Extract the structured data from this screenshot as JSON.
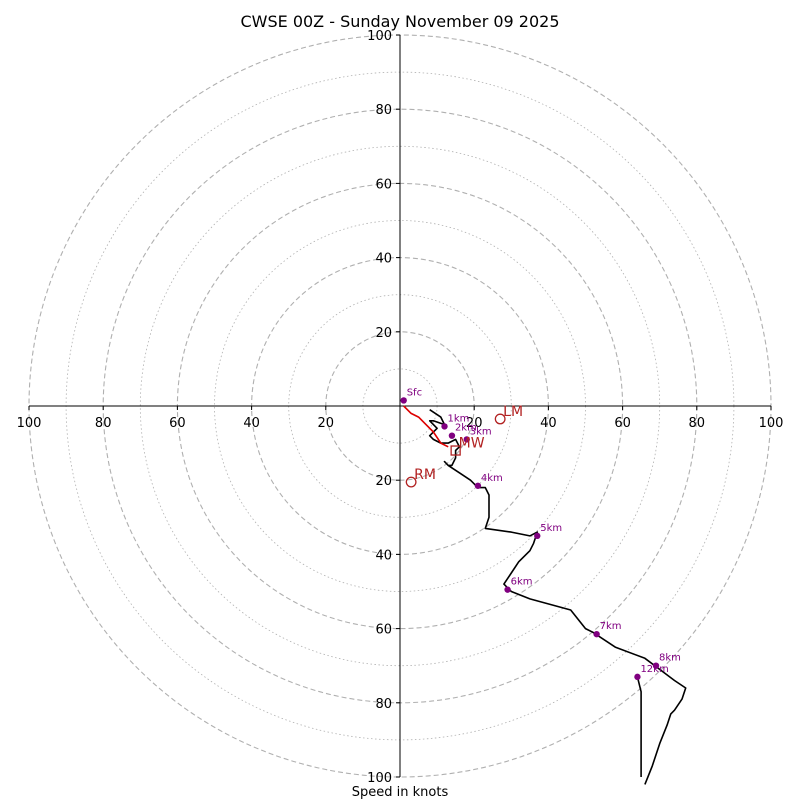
{
  "chart_data": {
    "type": "hodograph",
    "title": "CWSE 00Z - Sunday November 09 2025",
    "xlabel": "Speed in knots",
    "range": [
      -100,
      100
    ],
    "ring_major_step": 20,
    "ring_minor_step": 10,
    "x_ticks": [
      "100",
      "80",
      "60",
      "40",
      "20",
      "20",
      "40",
      "60",
      "80",
      "100"
    ],
    "x_tick_values": [
      -100,
      -80,
      -60,
      -40,
      -20,
      20,
      40,
      60,
      80,
      100
    ],
    "y_ticks": [
      "100",
      "80",
      "60",
      "40",
      "20",
      "20",
      "40",
      "60",
      "80",
      "100"
    ],
    "y_tick_values": [
      100,
      80,
      60,
      40,
      20,
      -20,
      -40,
      -60,
      -80,
      -100
    ],
    "colors": {
      "trace": "#000000",
      "low_trace": "#dd0000",
      "points": "#800080",
      "motion": "#b22222",
      "ring": "#b0b0b0"
    },
    "trace": [
      [
        8,
        -1
      ],
      [
        11,
        -3
      ],
      [
        12,
        -5
      ],
      [
        9,
        -4
      ],
      [
        8,
        -4
      ],
      [
        10,
        -6
      ],
      [
        8,
        -8
      ],
      [
        9,
        -9
      ],
      [
        11,
        -10
      ],
      [
        13,
        -10
      ],
      [
        15,
        -9
      ],
      [
        16,
        -11
      ],
      [
        15,
        -12
      ],
      [
        15,
        -14
      ],
      [
        14,
        -16
      ],
      [
        13,
        -16
      ],
      [
        12,
        -15
      ],
      [
        13,
        -16
      ],
      [
        16,
        -18
      ],
      [
        19,
        -20
      ],
      [
        21,
        -22
      ],
      [
        23,
        -22
      ],
      [
        24,
        -24
      ],
      [
        24,
        -30
      ],
      [
        23,
        -33
      ],
      [
        30,
        -34
      ],
      [
        35,
        -35
      ],
      [
        37,
        -34
      ],
      [
        36,
        -37
      ],
      [
        35,
        -39
      ],
      [
        32,
        -42
      ],
      [
        30,
        -45
      ],
      [
        28,
        -48
      ],
      [
        30,
        -50
      ],
      [
        35,
        -52
      ],
      [
        46,
        -55
      ],
      [
        50,
        -60
      ],
      [
        52,
        -61
      ],
      [
        58,
        -65
      ],
      [
        66,
        -68
      ],
      [
        70,
        -71
      ],
      [
        74,
        -74
      ],
      [
        77,
        -76
      ],
      [
        76,
        -79
      ],
      [
        74,
        -82
      ],
      [
        73,
        -83
      ],
      [
        72,
        -86
      ],
      [
        70,
        -91
      ],
      [
        68,
        -97
      ],
      [
        66,
        -102
      ]
    ],
    "trace_upper": [
      [
        64,
        -73
      ],
      [
        65,
        -77
      ],
      [
        65,
        -86
      ],
      [
        65,
        -100
      ]
    ],
    "low_trace": [
      [
        1,
        0
      ],
      [
        3,
        -2
      ],
      [
        5,
        -3
      ],
      [
        7,
        -5
      ],
      [
        9,
        -7
      ],
      [
        11,
        -10
      ],
      [
        13,
        -11
      ]
    ],
    "height_markers": [
      {
        "label": "Sfc",
        "u": 1,
        "v": 1.5
      },
      {
        "label": "1km",
        "u": 12,
        "v": -5.5
      },
      {
        "label": "2km",
        "u": 14,
        "v": -8
      },
      {
        "label": "3km",
        "u": 18,
        "v": -9
      },
      {
        "label": "4km",
        "u": 21,
        "v": -21.5
      },
      {
        "label": "5km",
        "u": 37,
        "v": -35
      },
      {
        "label": "6km",
        "u": 29,
        "v": -49.5
      },
      {
        "label": "7km",
        "u": 53,
        "v": -61.5
      },
      {
        "label": "8km",
        "u": 69,
        "v": -70
      },
      {
        "label": "12km",
        "u": 64,
        "v": -73
      }
    ],
    "storm_motion": [
      {
        "label": "LM",
        "u": 27,
        "v": -3.5,
        "shape": "circle"
      },
      {
        "label": "MW",
        "u": 15,
        "v": -12,
        "shape": "square"
      },
      {
        "label": "RM",
        "u": 3,
        "v": -20.5,
        "shape": "circle"
      }
    ]
  }
}
